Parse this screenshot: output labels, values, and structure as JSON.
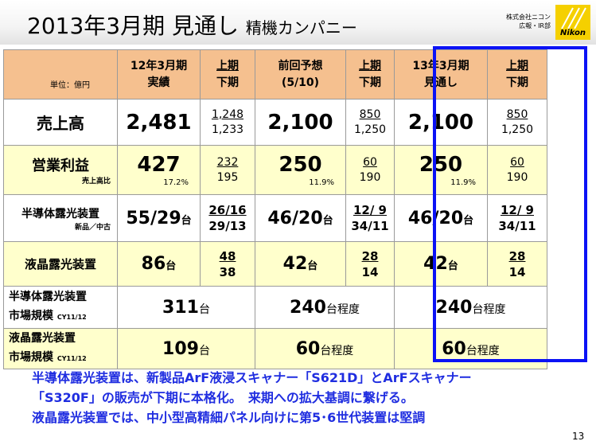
{
  "title": {
    "main": "2013年3月期 見通し",
    "sub": "精機カンパニー"
  },
  "company_lines": [
    "株式会社ニコン",
    "広報・IR部"
  ],
  "logo_text": "Nikon",
  "header": {
    "unit": "単位：億円",
    "col1": [
      "12年3月期",
      "実績"
    ],
    "col2": [
      "上期",
      "下期"
    ],
    "col3": [
      "前回予想",
      "(5/10)"
    ],
    "col4": [
      "上期",
      "下期"
    ],
    "col5": [
      "13年3月期",
      "見通し"
    ],
    "col6": [
      "上期",
      "下期"
    ]
  },
  "rows": {
    "sales": {
      "label": "売上高",
      "actual": "2,481",
      "actual_h": [
        "1,248",
        "1,233"
      ],
      "prev": "2,100",
      "prev_h": [
        "850",
        "1,250"
      ],
      "fc": "2,100",
      "fc_h": [
        "850",
        "1,250"
      ]
    },
    "op": {
      "label": "営業利益",
      "sublabel": "売上高比",
      "actual": "427",
      "actual_pct": "17.2%",
      "actual_h": [
        "232",
        "195"
      ],
      "prev": "250",
      "prev_pct": "11.9%",
      "prev_h": [
        "60",
        "190"
      ],
      "fc": "250",
      "fc_pct": "11.9%",
      "fc_h": [
        "60",
        "190"
      ]
    },
    "semi": {
      "label": "半導体露光装置",
      "sublabel": "新品／中古",
      "actual": "55/29",
      "actual_h": [
        "26/16",
        "29/13"
      ],
      "prev": "46/20",
      "prev_h": [
        "12/ 9",
        "34/11"
      ],
      "fc": "46/20",
      "fc_h": [
        "12/ 9",
        "34/11"
      ]
    },
    "lcd": {
      "label": "液晶露光装置",
      "actual": "86",
      "actual_h": [
        "48",
        "38"
      ],
      "prev": "42",
      "prev_h": [
        "28",
        "14"
      ],
      "fc": "42",
      "fc_h": [
        "28",
        "14"
      ]
    },
    "semi_mkt": {
      "label1": "半導体露光装置",
      "label2": "市場規模",
      "cy": "CY11/12",
      "actual": "311",
      "prev": "240",
      "fc": "240"
    },
    "lcd_mkt": {
      "label1": "液晶露光装置",
      "label2": "市場規模",
      "cy": "CY11/12",
      "actual": "109",
      "prev": "60",
      "fc": "60"
    }
  },
  "units": {
    "dai": "台",
    "approx": "台程度"
  },
  "summary": [
    "半導体露光装置は、新製品ArF液浸スキャナー「S621D」とArFスキャナー",
    "「S320F」の販売が下期に本格化。　来期への拡大基調に繋げる。",
    "液晶露光装置では、中小型高精細パネル向けに第5･6世代装置は堅調"
  ],
  "page_number": "13",
  "colors": {
    "header_bg": "#f5c08f",
    "yellow_row": "#ffffcc",
    "highlight_border": "#0b12f5",
    "summary_text": "#1f2de0",
    "logo": "#f5d000"
  }
}
